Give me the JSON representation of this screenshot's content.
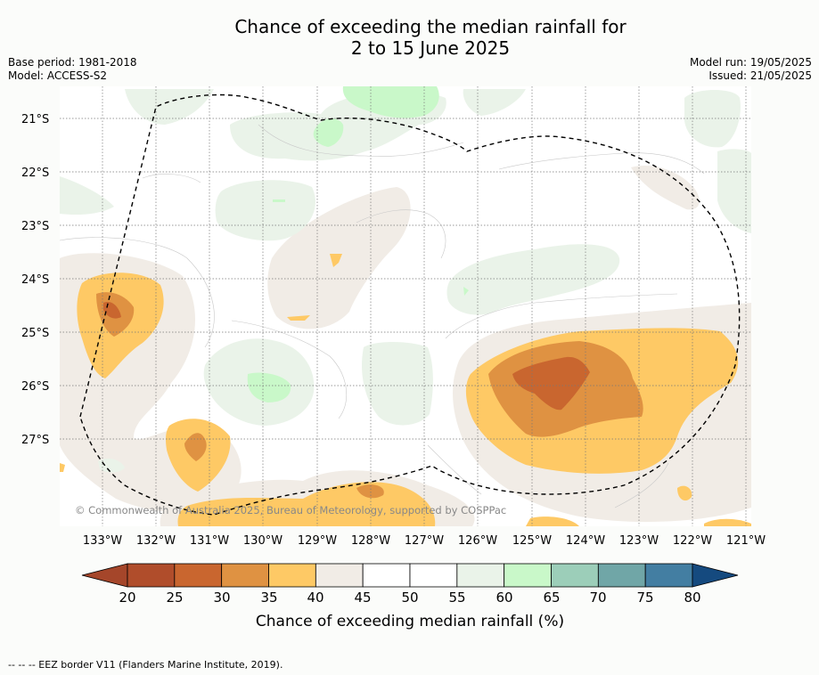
{
  "title": {
    "line1": "Chance of exceeding the median rainfall for",
    "line2": "2 to 15 June 2025"
  },
  "meta_left": {
    "base_period": "Base period: 1981-2018",
    "model": "Model: ACCESS-S2"
  },
  "meta_right": {
    "model_run": "Model run: 19/05/2025",
    "issued": "Issued: 21/05/2025"
  },
  "map": {
    "lat_labels": [
      "21°S",
      "22°S",
      "23°S",
      "24°S",
      "25°S",
      "26°S",
      "27°S"
    ],
    "lon_labels": [
      "133°W",
      "132°W",
      "131°W",
      "130°W",
      "129°W",
      "128°W",
      "127°W",
      "126°W",
      "125°W",
      "124°W",
      "123°W",
      "122°W",
      "121°W"
    ],
    "copyright": "© Commonwealth of Australia 2025, Bureau of Meteorology, supported by COSPPac",
    "boundary_style": "dashed"
  },
  "colorbar": {
    "ticks": [
      "20",
      "25",
      "30",
      "35",
      "40",
      "45",
      "50",
      "55",
      "60",
      "65",
      "70",
      "75",
      "80"
    ],
    "colors": [
      "#a5462a",
      "#b04d2b",
      "#c9662f",
      "#df9242",
      "#fec965",
      "#f1ece6",
      "#ffffff",
      "#ffffff",
      "#eaf3e9",
      "#c9f8c9",
      "#9cceb9",
      "#70a6a7",
      "#437ea2",
      "#154a7f"
    ],
    "label": "Chance of exceeding median rainfall (%)"
  },
  "footer": {
    "legend_text": "--  --  -- EEZ border V11 (Flanders Marine Institute, 2019)."
  }
}
